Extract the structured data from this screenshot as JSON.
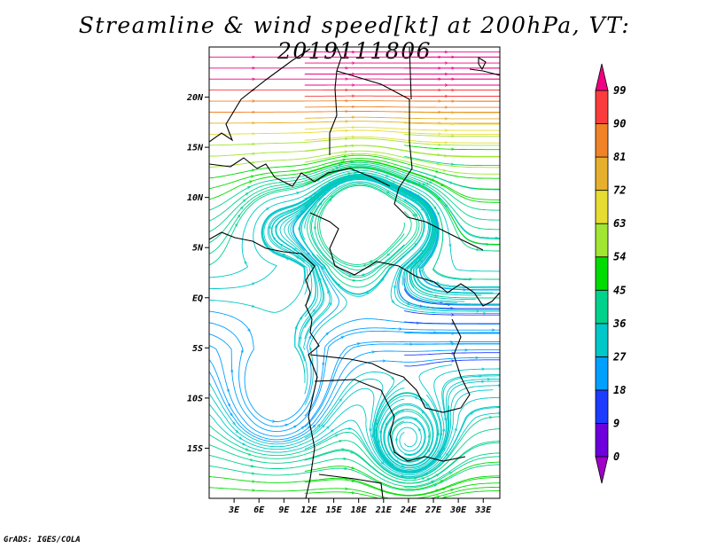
{
  "title": "Streamline & wind speed[kt] at 200hPa, VT: 2019111806",
  "credit": "GrADS: IGES/COLA",
  "map": {
    "lon_range": [
      0,
      35
    ],
    "lat_range": [
      -20,
      25
    ],
    "lon_ticks": [
      {
        "value": 3,
        "label": "3E"
      },
      {
        "value": 6,
        "label": "6E"
      },
      {
        "value": 9,
        "label": "9E"
      },
      {
        "value": 12,
        "label": "12E"
      },
      {
        "value": 15,
        "label": "15E"
      },
      {
        "value": 18,
        "label": "18E"
      },
      {
        "value": 21,
        "label": "21E"
      },
      {
        "value": 24,
        "label": "24E"
      },
      {
        "value": 27,
        "label": "27E"
      },
      {
        "value": 30,
        "label": "30E"
      },
      {
        "value": 33,
        "label": "33E"
      }
    ],
    "lat_ticks": [
      {
        "value": 20,
        "label": "20N"
      },
      {
        "value": 15,
        "label": "15N"
      },
      {
        "value": 10,
        "label": "10N"
      },
      {
        "value": 5,
        "label": "5N"
      },
      {
        "value": 0,
        "label": "EQ"
      },
      {
        "value": -5,
        "label": "5S"
      },
      {
        "value": -10,
        "label": "10S"
      },
      {
        "value": -15,
        "label": "15S"
      }
    ]
  },
  "colorbar": {
    "labels": [
      "0",
      "9",
      "18",
      "27",
      "36",
      "45",
      "54",
      "63",
      "72",
      "81",
      "90",
      "99"
    ],
    "colors": [
      "#a000c8",
      "#6e00dc",
      "#1e3cff",
      "#00a0ff",
      "#00c8c8",
      "#00d28c",
      "#00dc00",
      "#a0e632",
      "#e6dc32",
      "#e6af2d",
      "#f08228",
      "#fa3c3c",
      "#f00082"
    ]
  }
}
